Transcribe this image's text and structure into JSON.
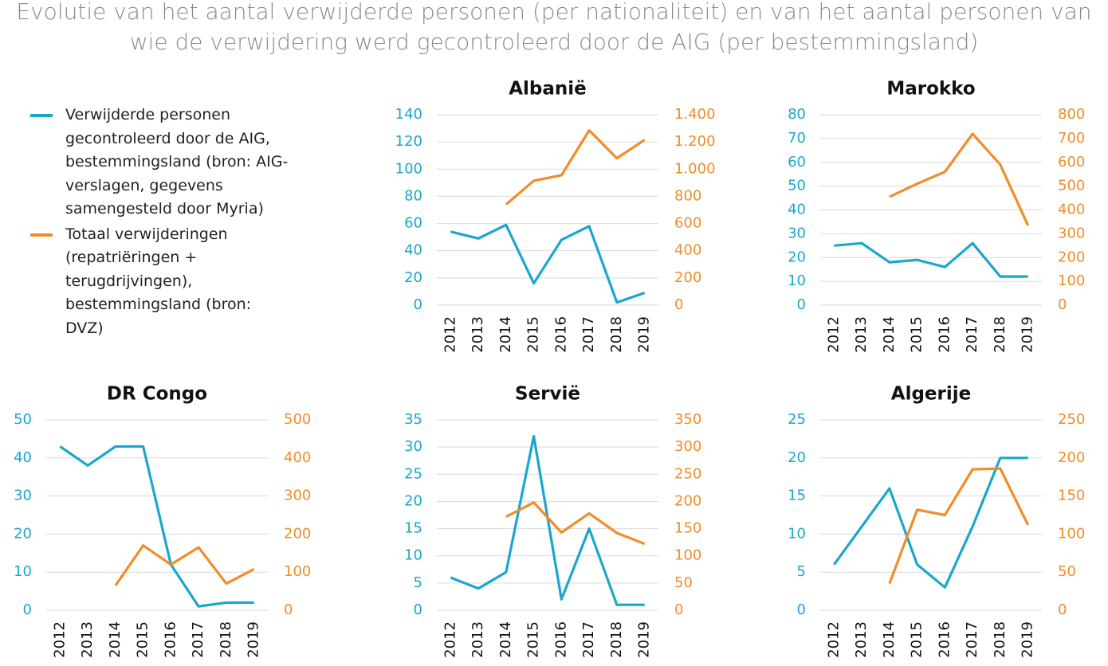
{
  "title": "Evolutie van het aantal verwijderde personen (per nationaliteit) en van het aantal personen van wie de verwijdering werd gecontroleerd door de AIG (per bestemmingsland)",
  "legend": [
    {
      "name": "Verwijderde personen gecontroleerd door de AIG, bestemmingsland (bron: AIG-verslagen, gegevens samengesteld door Myria)",
      "color": "#1aa7cc"
    },
    {
      "name": "Totaal verwijderingen (repatriëringen + terugdrijvingen), bestemmingsland (bron: DVZ)",
      "color": "#f28c28"
    }
  ],
  "chart_data": [
    {
      "type": "line",
      "title": "Albanië",
      "categories": [
        "2012",
        "2013",
        "2014",
        "2015",
        "2016",
        "2017",
        "2018",
        "2019"
      ],
      "ylim": [
        0,
        140
      ],
      "yticks": [
        0,
        20,
        40,
        60,
        80,
        100,
        120,
        140
      ],
      "y2lim": [
        0,
        1400
      ],
      "y2ticks": [
        0,
        200,
        400,
        600,
        800,
        {
          "value": 1000,
          "label": "1.000"
        },
        {
          "value": 1200,
          "label": "1.200"
        },
        {
          "value": 1400,
          "label": "1.400"
        }
      ],
      "grid": true,
      "series": [
        {
          "color": "#1aa7cc",
          "values": [
            54,
            49,
            59,
            16,
            48,
            58,
            2,
            9
          ]
        },
        {
          "color": "#f28c28",
          "axis": "y2",
          "values": [
            null,
            null,
            740,
            915,
            955,
            1285,
            1080,
            1215
          ]
        }
      ]
    },
    {
      "type": "line",
      "title": "Marokko",
      "categories": [
        "2012",
        "2013",
        "2014",
        "2015",
        "2016",
        "2017",
        "2018",
        "2019"
      ],
      "ylim": [
        0,
        80
      ],
      "yticks": [
        0,
        10,
        20,
        30,
        40,
        50,
        60,
        70,
        80
      ],
      "y2lim": [
        0,
        800
      ],
      "y2ticks": [
        0,
        100,
        200,
        300,
        400,
        500,
        600,
        700,
        800
      ],
      "grid": true,
      "series": [
        {
          "color": "#1aa7cc",
          "values": [
            25,
            26,
            18,
            19,
            16,
            26,
            12,
            12
          ]
        },
        {
          "color": "#f28c28",
          "axis": "y2",
          "values": [
            null,
            null,
            455,
            510,
            560,
            720,
            590,
            335
          ]
        }
      ]
    },
    {
      "type": "line",
      "title": "DR Congo",
      "categories": [
        "2012",
        "2013",
        "2014",
        "2015",
        "2016",
        "2017",
        "2018",
        "2019"
      ],
      "ylim": [
        0,
        50
      ],
      "yticks": [
        0,
        10,
        20,
        30,
        40,
        50
      ],
      "y2lim": [
        0,
        500
      ],
      "y2ticks": [
        0,
        100,
        200,
        300,
        400,
        500
      ],
      "grid": true,
      "series": [
        {
          "color": "#1aa7cc",
          "values": [
            43,
            38,
            43,
            43,
            12,
            1,
            2,
            2
          ]
        },
        {
          "color": "#f28c28",
          "axis": "y2",
          "values": [
            null,
            null,
            65,
            170,
            120,
            165,
            70,
            108
          ]
        }
      ]
    },
    {
      "type": "line",
      "title": "Servië",
      "categories": [
        "2012",
        "2013",
        "2014",
        "2015",
        "2016",
        "2017",
        "2018",
        "2019"
      ],
      "ylim": [
        0,
        35
      ],
      "yticks": [
        0,
        5,
        10,
        15,
        20,
        25,
        30,
        35
      ],
      "y2lim": [
        0,
        350
      ],
      "y2ticks": [
        0,
        50,
        100,
        150,
        200,
        250,
        300,
        350
      ],
      "grid": true,
      "series": [
        {
          "color": "#1aa7cc",
          "values": [
            6,
            4,
            7,
            32,
            2,
            15,
            1,
            1
          ]
        },
        {
          "color": "#f28c28",
          "axis": "y2",
          "values": [
            null,
            null,
            172,
            198,
            143,
            178,
            142,
            122
          ]
        }
      ]
    },
    {
      "type": "line",
      "title": "Algerije",
      "categories": [
        "2012",
        "2013",
        "2014",
        "2015",
        "2016",
        "2017",
        "2018",
        "2019"
      ],
      "ylim": [
        0,
        25
      ],
      "yticks": [
        0,
        5,
        10,
        15,
        20,
        25
      ],
      "y2lim": [
        0,
        250
      ],
      "y2ticks": [
        0,
        50,
        100,
        150,
        200,
        250
      ],
      "grid": true,
      "series": [
        {
          "color": "#1aa7cc",
          "values": [
            6,
            11,
            16,
            6,
            3,
            11,
            20,
            20
          ]
        },
        {
          "color": "#f28c28",
          "axis": "y2",
          "values": [
            null,
            null,
            35,
            132,
            125,
            185,
            186,
            112
          ]
        }
      ]
    }
  ]
}
